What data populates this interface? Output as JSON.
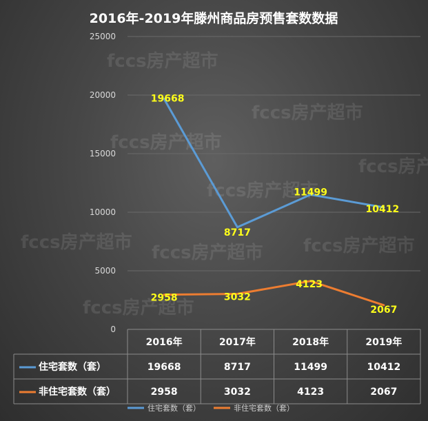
{
  "chart_data": {
    "type": "line",
    "title": "2016年-2019年滕州商品房预售套数数据",
    "categories": [
      "2016年",
      "2017年",
      "2018年",
      "2019年"
    ],
    "ylim": [
      0,
      25000
    ],
    "yticks": [
      0,
      5000,
      10000,
      15000,
      20000,
      25000
    ],
    "grid": true,
    "legend_position": "bottom",
    "data_table": true,
    "series": [
      {
        "name": "住宅套数（套）",
        "values": [
          19668,
          8717,
          11499,
          10412
        ],
        "color": "#5b9bd5"
      },
      {
        "name": "非住宅套数（套）",
        "values": [
          2958,
          3032,
          4123,
          2067
        ],
        "color": "#ed7d31"
      }
    ],
    "data_label_color": "#ffff1a"
  },
  "watermark": "fccs房产超市"
}
